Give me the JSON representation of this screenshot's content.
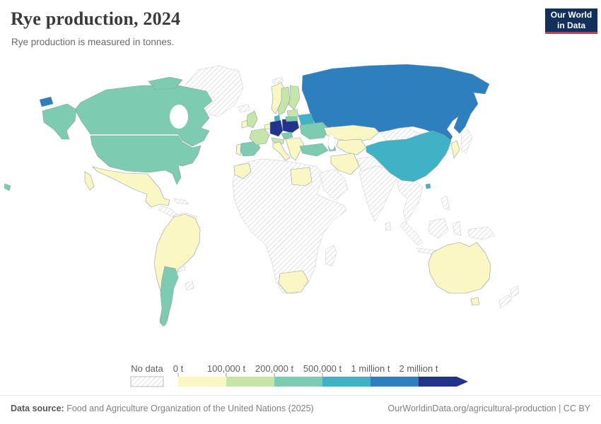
{
  "header": {
    "title": "Rye production, 2024",
    "subtitle": "Rye production is measured in tonnes.",
    "logo": {
      "line1": "Our World",
      "line2": "in Data",
      "bg": "#12305a",
      "accent": "#d93a2c"
    }
  },
  "legend": {
    "no_data_label": "No data",
    "tick_labels": [
      "0 t",
      "100,000 t",
      "200,000 t",
      "500,000 t",
      "1 million t",
      "2 million t"
    ]
  },
  "footer": {
    "source_label": "Data source:",
    "source_text": " Food and Agriculture Organization of the United Nations (2025)",
    "credit": "OurWorldinData.org/agricultural-production | CC BY"
  },
  "chart_data": {
    "type": "choropleth",
    "title": "Rye production, 2024",
    "unit": "tonnes",
    "legend_position": "bottom",
    "bin_labels": [
      "0 t – 100,000 t",
      "100,000 t – 200,000 t",
      "200,000 t – 500,000 t",
      "500,000 t – 1 million t",
      "1 million t – 2 million t",
      "more than 2 million t"
    ],
    "bin_colors": [
      "#faf7c4",
      "#c6e5a9",
      "#7dcbb1",
      "#3fb2c6",
      "#2d7fbd",
      "#22338c"
    ],
    "no_data_style": "gray-hatched",
    "countries": {
      "germany": 5,
      "poland": 5,
      "russia": 4,
      "china": 3,
      "belarus": 3,
      "denmark": 3,
      "canada": 2,
      "usa": 2,
      "argentina": 2,
      "spain": 2,
      "turkey": 2,
      "ukraine": 2,
      "czechia": 2,
      "lithuania": 2,
      "azerbaijan": 2,
      "france": 1,
      "united-kingdom": 1,
      "sweden": 1,
      "finland": 1,
      "austria": 1,
      "estonia-latvia": 1,
      "norway": 0,
      "ireland": 0,
      "portugal": 0,
      "italy": 0,
      "balkans": 0,
      "benelux": 0,
      "mexico": 0,
      "south-america": 0,
      "egypt": 0,
      "morocco": 0,
      "south-africa": 0,
      "australia": 0,
      "tasmania": 0,
      "kazakhstan": 0,
      "central-asia": 0,
      "iran": 0,
      "korea": 0,
      "greenland": "no_data",
      "iceland": "no_data",
      "svalbard": "no_data",
      "novaya-zemlya": "no_data",
      "central-america": "no_data",
      "caribbean": "no_data",
      "colombia-venezuela": "no_data",
      "paraguay": "no_data",
      "uruguay": "no_data",
      "africa": "no_data",
      "madagascar": "no_data",
      "middle-east": "no_data",
      "afghanistan-pakistan": "no_data",
      "india": "no_data",
      "sri-lanka": "no_data",
      "mongolia": "no_data",
      "japan": "no_data",
      "mainland-se-asia": "no_data",
      "sumatra": "no_data",
      "java": "no_data",
      "borneo": "no_data",
      "sulawesi": "no_data",
      "philippines": "no_data",
      "new-guinea": "no_data",
      "new-zealand": "no_data"
    }
  }
}
